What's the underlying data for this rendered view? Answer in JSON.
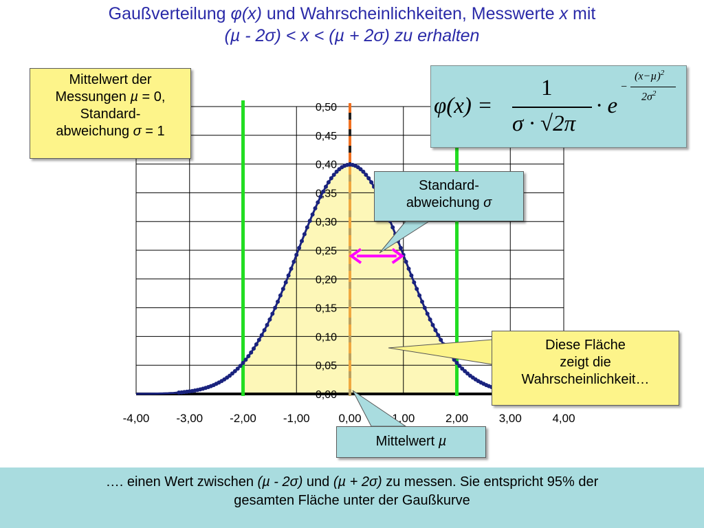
{
  "title": {
    "line1_pre": "Gaußverteilung ",
    "line1_phi": "φ(x)",
    "line1_mid": " und Wahrscheinlichkeiten, Messwerte ",
    "line1_x": "x",
    "line1_post": " mit",
    "line2": "(µ - 2σ) < x < (µ + 2σ) zu erhalten"
  },
  "callouts": {
    "params": {
      "line1": "Mittelwert der",
      "line2_pre": "Messungen ",
      "line2_mu": "µ",
      "line2_post": " = 0,",
      "line3": "Standard-",
      "line4_pre": "abweichung ",
      "line4_sigma": "σ",
      "line4_post": " = 1"
    },
    "stddev": {
      "line1": "Standard-",
      "line2_pre": "abweichung ",
      "line2_sigma": "σ"
    },
    "area": {
      "line1": "Diese Fläche",
      "line2": "zeigt die",
      "line3": "Wahrscheinlichkeit…"
    },
    "mean": {
      "text_pre": "Mittelwert ",
      "text_mu": "µ"
    }
  },
  "formula": {
    "lhs": "φ(x) =",
    "numerator": "1",
    "denominator": "σ · √2π",
    "dot_e": "· e",
    "exp_minus": "−",
    "exp_num": "(x−µ)",
    "exp_num_sup": "2",
    "exp_den": "2σ",
    "exp_den_sup": "2"
  },
  "footer": {
    "line1_a": "…. einen Wert  zwischen  ",
    "line1_b": "(µ - 2σ)",
    "line1_c": " und  ",
    "line1_d": "(µ + 2σ)",
    "line1_e": " zu messen. Sie entspricht 95% der",
    "line2": "gesamten Fläche unter der Gaußkurve"
  },
  "colors": {
    "curve": "#1a237e",
    "fill": "#fdf7b8",
    "green_lines": "#22dd22",
    "orange_dash": "#f0a840",
    "arrow": "#ff00ff",
    "grid": "#000000"
  },
  "chart_data": {
    "type": "line",
    "series": [],
    "curve": {
      "mu": 0,
      "sigma": 1
    },
    "xlim": [
      -4,
      4
    ],
    "ylim": [
      0,
      0.5
    ],
    "x_ticks": [
      "-4,00",
      "-3,00",
      "-2,00",
      "-1,00",
      "0,00",
      "1,00",
      "2,00",
      "3,00",
      "4,00"
    ],
    "y_ticks": [
      "0,00",
      "0,05",
      "0,10",
      "0,15",
      "0,20",
      "0,25",
      "0,30",
      "0,35",
      "0,40",
      "0,45",
      "0,50"
    ],
    "shaded_interval": [
      -2,
      2
    ],
    "vertical_lines": [
      -2,
      2
    ],
    "mean_line_x": 0,
    "sigma_arrow": {
      "from_x": 0,
      "to_x": 1,
      "y": 0.24
    },
    "grid": true
  }
}
